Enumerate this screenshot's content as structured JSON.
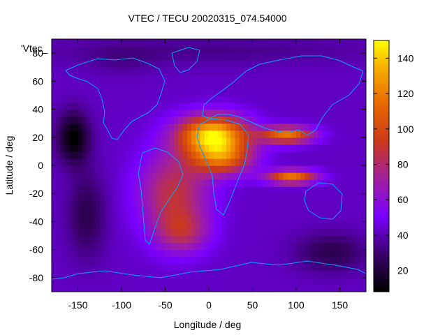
{
  "chart_data": {
    "type": "heatmap",
    "title": "VTEC / TECU 20020315_074.54000",
    "xlabel": "Longitude / deg",
    "ylabel": "Latitude / deg",
    "key_label": "'Vtec_",
    "xlim": [
      -180,
      180
    ],
    "ylim": [
      -90,
      90
    ],
    "x_ticks": [
      -150,
      -100,
      -50,
      0,
      50,
      100,
      150
    ],
    "y_ticks": [
      -80,
      -60,
      -40,
      -20,
      0,
      20,
      40,
      60,
      80
    ],
    "colorbar": {
      "range": [
        8,
        150
      ],
      "ticks": [
        20,
        40,
        60,
        80,
        100,
        120,
        140
      ]
    },
    "field": {
      "background": 42,
      "lon_step": 5,
      "lat_step": 5,
      "components": [
        {
          "lon": 5,
          "lat": 22,
          "amp": 100,
          "sx": 40,
          "sy": 14
        },
        {
          "lon": 15,
          "lat": 5,
          "amp": 60,
          "sx": 35,
          "sy": 12
        },
        {
          "lon": 90,
          "lat": 22,
          "amp": 75,
          "sx": 30,
          "sy": 6
        },
        {
          "lon": 95,
          "lat": -8,
          "amp": 75,
          "sx": 28,
          "sy": 5
        },
        {
          "lon": -40,
          "lat": -20,
          "amp": 45,
          "sx": 40,
          "sy": 30
        },
        {
          "lon": -30,
          "lat": -48,
          "amp": 30,
          "sx": 30,
          "sy": 15
        },
        {
          "lon": -155,
          "lat": 20,
          "amp": -35,
          "sx": 18,
          "sy": 18
        },
        {
          "lon": -140,
          "lat": -35,
          "amp": -18,
          "sx": 22,
          "sy": 30
        },
        {
          "lon": 0,
          "lat": 82,
          "amp": -8,
          "sx": 200,
          "sy": 10
        },
        {
          "lon": 140,
          "lat": -62,
          "amp": -18,
          "sx": 40,
          "sy": 14
        },
        {
          "lon": -100,
          "lat": 75,
          "amp": -6,
          "sx": 40,
          "sy": 10
        }
      ]
    }
  }
}
